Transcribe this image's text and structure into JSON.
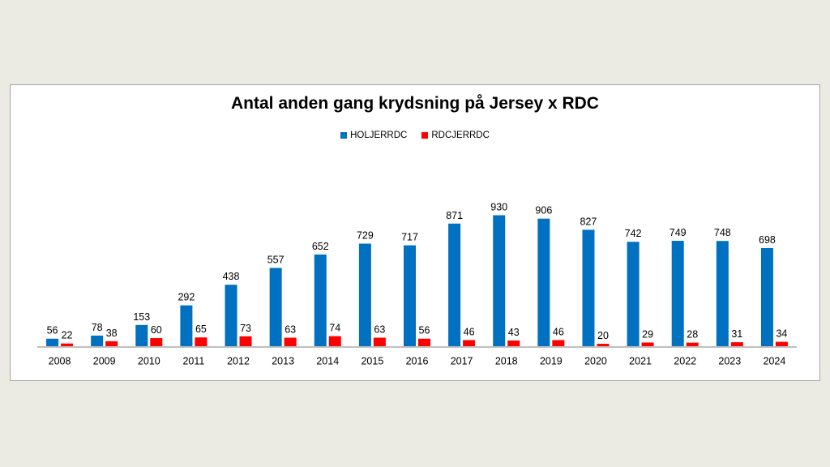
{
  "chart_data": {
    "type": "bar",
    "title": "Antal anden gang krydsning på Jersey x RDC",
    "categories": [
      "2008",
      "2009",
      "2010",
      "2011",
      "2012",
      "2013",
      "2014",
      "2015",
      "2016",
      "2017",
      "2018",
      "2019",
      "2020",
      "2021",
      "2022",
      "2023",
      "2024"
    ],
    "series": [
      {
        "name": "HOLJERRDC",
        "color": "#0070c0",
        "values": [
          56,
          78,
          153,
          292,
          438,
          557,
          652,
          729,
          717,
          871,
          930,
          906,
          827,
          742,
          749,
          748,
          698
        ]
      },
      {
        "name": "RDCJERRDC",
        "color": "#ff0000",
        "values": [
          22,
          38,
          60,
          65,
          73,
          63,
          74,
          63,
          56,
          46,
          43,
          46,
          20,
          29,
          28,
          31,
          34
        ]
      }
    ],
    "legend_position": "top",
    "grid": false,
    "data_labels": true,
    "xlabel": "",
    "ylabel": ""
  }
}
